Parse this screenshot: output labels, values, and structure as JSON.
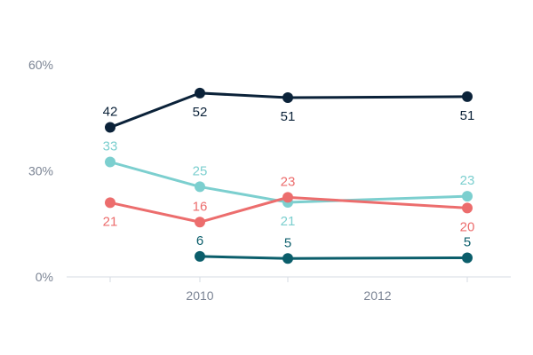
{
  "chart_data": {
    "type": "line",
    "x": [
      2009,
      2010,
      2011,
      2012.5
    ],
    "xticks": [
      2010,
      2012
    ],
    "xtick_labels": [
      "2010",
      "2012"
    ],
    "ylim": [
      0,
      60
    ],
    "yticks": [
      0,
      30,
      60
    ],
    "ytick_labels": [
      "0%",
      "30%",
      "60%"
    ],
    "grid": false,
    "legend": "none",
    "series": [
      {
        "color": "#0b2239",
        "values": [
          42,
          52,
          51,
          51
        ],
        "labels": [
          "42",
          "52",
          "51",
          "51"
        ],
        "plot_values": [
          42.3,
          52.0,
          50.7,
          51.0
        ],
        "label_pos": [
          "above",
          "below",
          "below",
          "below"
        ]
      },
      {
        "color": "#7ccfcf",
        "values": [
          33,
          25,
          21,
          23
        ],
        "labels": [
          "33",
          "25",
          "21",
          "23"
        ],
        "plot_values": [
          32.5,
          25.5,
          21.1,
          22.8
        ],
        "label_pos": [
          "above",
          "above",
          "below",
          "above"
        ]
      },
      {
        "color": "#ec6d6d",
        "values": [
          21,
          16,
          23,
          20
        ],
        "labels": [
          "21",
          "16",
          "23",
          "20"
        ],
        "plot_values": [
          21.0,
          15.5,
          22.5,
          19.5
        ],
        "label_pos": [
          "below",
          "above",
          "above",
          "below"
        ]
      },
      {
        "color": "#0b5e6b",
        "values": [
          null,
          6,
          5,
          5
        ],
        "labels": [
          null,
          "6",
          "5",
          "5"
        ],
        "plot_values": [
          null,
          5.8,
          5.2,
          5.4
        ],
        "label_pos": [
          null,
          "above",
          "above",
          "above"
        ]
      }
    ]
  }
}
